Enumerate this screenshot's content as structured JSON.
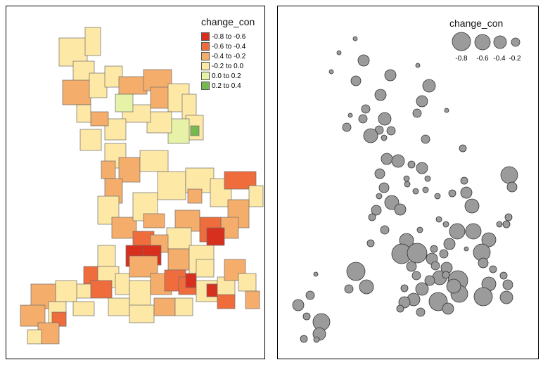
{
  "choropleth": {
    "legend_title": "change_con",
    "classes": [
      {
        "label": "-0.8 to -0.6",
        "color": "#d7301f"
      },
      {
        "label": "-0.6 to -0.4",
        "color": "#ef6c3c"
      },
      {
        "label": "-0.4 to -0.2",
        "color": "#f4ad6b"
      },
      {
        "label": "-0.2 to 0.0",
        "color": "#fde8a6"
      },
      {
        "label": "0.0 to 0.2",
        "color": "#e6f2a8"
      },
      {
        "label": "0.2 to 0.4",
        "color": "#78b94f"
      }
    ]
  },
  "bubbles": {
    "legend_title": "change_con",
    "legend_values": [
      "-0.8",
      "-0.6",
      "-0.4",
      "-0.2"
    ],
    "fill_color": "#9b9b9b",
    "stroke_color": "#333333"
  }
}
